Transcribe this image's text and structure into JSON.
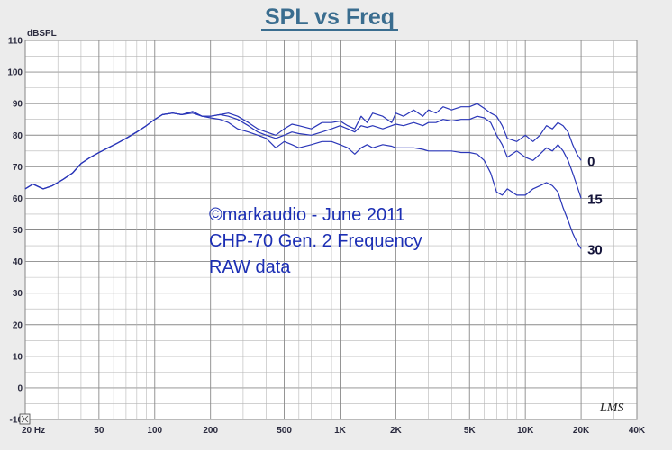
{
  "chart_data": {
    "type": "line",
    "title": "SPL vs Freq",
    "ylabel": "dBSPL",
    "xlabel": "",
    "xscale": "log",
    "xlim": [
      20,
      40000
    ],
    "ylim": [
      -10,
      110
    ],
    "yticks": [
      "110",
      "100",
      "90",
      "80",
      "70",
      "60",
      "50",
      "40",
      "30",
      "20",
      "10",
      "0",
      "-10"
    ],
    "xticks": [
      {
        "value": 20,
        "label": "20 Hz"
      },
      {
        "value": 50,
        "label": "50"
      },
      {
        "value": 100,
        "label": "100"
      },
      {
        "value": 200,
        "label": "200"
      },
      {
        "value": 500,
        "label": "500"
      },
      {
        "value": 1000,
        "label": "1K"
      },
      {
        "value": 2000,
        "label": "2K"
      },
      {
        "value": 5000,
        "label": "5K"
      },
      {
        "value": 10000,
        "label": "10K"
      },
      {
        "value": 20000,
        "label": "20K"
      },
      {
        "value": 40000,
        "label": "40K"
      }
    ],
    "grid": true,
    "annotation": [
      "©markaudio - June 2011",
      "CHP-70 Gen. 2 Frequency",
      "RAW data"
    ],
    "series": [
      {
        "name": "0",
        "color": "#2a36b8",
        "points": [
          [
            20,
            63
          ],
          [
            22,
            64.5
          ],
          [
            25,
            63
          ],
          [
            28,
            64
          ],
          [
            32,
            66
          ],
          [
            36,
            68
          ],
          [
            40,
            71
          ],
          [
            45,
            73
          ],
          [
            50,
            74.5
          ],
          [
            56,
            76
          ],
          [
            63,
            77.5
          ],
          [
            70,
            79
          ],
          [
            80,
            81
          ],
          [
            90,
            83
          ],
          [
            100,
            85
          ],
          [
            110,
            86.5
          ],
          [
            125,
            87
          ],
          [
            140,
            86.5
          ],
          [
            160,
            87.5
          ],
          [
            180,
            86
          ],
          [
            200,
            86
          ],
          [
            225,
            86.5
          ],
          [
            250,
            87
          ],
          [
            280,
            86
          ],
          [
            320,
            84
          ],
          [
            360,
            82
          ],
          [
            400,
            81
          ],
          [
            450,
            80
          ],
          [
            500,
            82
          ],
          [
            550,
            83.5
          ],
          [
            600,
            83
          ],
          [
            700,
            82
          ],
          [
            800,
            84
          ],
          [
            900,
            84
          ],
          [
            1000,
            84.5
          ],
          [
            1100,
            83
          ],
          [
            1200,
            82
          ],
          [
            1300,
            86
          ],
          [
            1400,
            84
          ],
          [
            1500,
            87
          ],
          [
            1700,
            86
          ],
          [
            1900,
            84
          ],
          [
            2000,
            87
          ],
          [
            2200,
            86
          ],
          [
            2500,
            88
          ],
          [
            2800,
            86
          ],
          [
            3000,
            88
          ],
          [
            3300,
            87
          ],
          [
            3600,
            89
          ],
          [
            4000,
            88
          ],
          [
            4500,
            89
          ],
          [
            5000,
            89
          ],
          [
            5500,
            90
          ],
          [
            6000,
            88.5
          ],
          [
            6500,
            87
          ],
          [
            7000,
            86
          ],
          [
            7500,
            83
          ],
          [
            8000,
            79
          ],
          [
            9000,
            78
          ],
          [
            10000,
            80
          ],
          [
            11000,
            78
          ],
          [
            12000,
            80
          ],
          [
            13000,
            83
          ],
          [
            14000,
            82
          ],
          [
            15000,
            84
          ],
          [
            16000,
            83
          ],
          [
            17000,
            81
          ],
          [
            18000,
            77
          ],
          [
            19000,
            74
          ],
          [
            20000,
            72
          ]
        ]
      },
      {
        "name": "15",
        "color": "#2a36b8",
        "points": [
          [
            20,
            63
          ],
          [
            22,
            64.5
          ],
          [
            25,
            63
          ],
          [
            28,
            64
          ],
          [
            32,
            66
          ],
          [
            36,
            68
          ],
          [
            40,
            71
          ],
          [
            45,
            73
          ],
          [
            50,
            74.5
          ],
          [
            56,
            76
          ],
          [
            63,
            77.5
          ],
          [
            70,
            79
          ],
          [
            80,
            81
          ],
          [
            90,
            83
          ],
          [
            100,
            85
          ],
          [
            110,
            86.5
          ],
          [
            125,
            87
          ],
          [
            140,
            86.5
          ],
          [
            160,
            87.5
          ],
          [
            180,
            86
          ],
          [
            200,
            86
          ],
          [
            225,
            86.5
          ],
          [
            250,
            86
          ],
          [
            280,
            85
          ],
          [
            320,
            83
          ],
          [
            360,
            81
          ],
          [
            400,
            80
          ],
          [
            450,
            79
          ],
          [
            500,
            80
          ],
          [
            550,
            81
          ],
          [
            600,
            80.5
          ],
          [
            700,
            80
          ],
          [
            800,
            81
          ],
          [
            900,
            82
          ],
          [
            1000,
            83
          ],
          [
            1100,
            82
          ],
          [
            1200,
            81
          ],
          [
            1300,
            83
          ],
          [
            1400,
            82.5
          ],
          [
            1500,
            83
          ],
          [
            1700,
            82
          ],
          [
            1900,
            83
          ],
          [
            2000,
            83.5
          ],
          [
            2200,
            83
          ],
          [
            2500,
            84
          ],
          [
            2800,
            83
          ],
          [
            3000,
            84
          ],
          [
            3300,
            84
          ],
          [
            3600,
            85
          ],
          [
            4000,
            84.5
          ],
          [
            4500,
            85
          ],
          [
            5000,
            85
          ],
          [
            5500,
            86
          ],
          [
            6000,
            85.5
          ],
          [
            6500,
            84
          ],
          [
            7000,
            80
          ],
          [
            7500,
            77
          ],
          [
            8000,
            73
          ],
          [
            9000,
            75
          ],
          [
            10000,
            73
          ],
          [
            11000,
            72
          ],
          [
            12000,
            74
          ],
          [
            13000,
            76
          ],
          [
            14000,
            75
          ],
          [
            15000,
            77
          ],
          [
            16000,
            75
          ],
          [
            17000,
            72
          ],
          [
            18000,
            68
          ],
          [
            19000,
            64
          ],
          [
            20000,
            60
          ]
        ]
      },
      {
        "name": "30",
        "color": "#2a36b8",
        "points": [
          [
            20,
            63
          ],
          [
            22,
            64.5
          ],
          [
            25,
            63
          ],
          [
            28,
            64
          ],
          [
            32,
            66
          ],
          [
            36,
            68
          ],
          [
            40,
            71
          ],
          [
            45,
            73
          ],
          [
            50,
            74.5
          ],
          [
            56,
            76
          ],
          [
            63,
            77.5
          ],
          [
            70,
            79
          ],
          [
            80,
            81
          ],
          [
            90,
            83
          ],
          [
            100,
            85
          ],
          [
            110,
            86.5
          ],
          [
            125,
            87
          ],
          [
            140,
            86.5
          ],
          [
            160,
            87
          ],
          [
            180,
            86
          ],
          [
            200,
            85.5
          ],
          [
            225,
            85
          ],
          [
            250,
            84
          ],
          [
            280,
            82
          ],
          [
            320,
            81
          ],
          [
            360,
            80
          ],
          [
            400,
            79
          ],
          [
            450,
            76
          ],
          [
            500,
            78
          ],
          [
            550,
            77
          ],
          [
            600,
            76
          ],
          [
            700,
            77
          ],
          [
            800,
            78
          ],
          [
            900,
            78
          ],
          [
            1000,
            77
          ],
          [
            1100,
            76
          ],
          [
            1200,
            74
          ],
          [
            1300,
            76
          ],
          [
            1400,
            77
          ],
          [
            1500,
            76
          ],
          [
            1700,
            77
          ],
          [
            1900,
            76.5
          ],
          [
            2000,
            76
          ],
          [
            2200,
            76
          ],
          [
            2500,
            76
          ],
          [
            2800,
            75.5
          ],
          [
            3000,
            75
          ],
          [
            3300,
            75
          ],
          [
            3600,
            75
          ],
          [
            4000,
            75
          ],
          [
            4500,
            74.5
          ],
          [
            5000,
            74.5
          ],
          [
            5500,
            74
          ],
          [
            6000,
            72
          ],
          [
            6500,
            68
          ],
          [
            7000,
            62
          ],
          [
            7500,
            61
          ],
          [
            8000,
            63
          ],
          [
            9000,
            61
          ],
          [
            10000,
            61
          ],
          [
            11000,
            63
          ],
          [
            12000,
            64
          ],
          [
            13000,
            65
          ],
          [
            14000,
            64
          ],
          [
            15000,
            62
          ],
          [
            16000,
            57
          ],
          [
            17000,
            53
          ],
          [
            18000,
            49
          ],
          [
            19000,
            46
          ],
          [
            20000,
            44
          ]
        ]
      }
    ]
  },
  "logo": "LMS"
}
